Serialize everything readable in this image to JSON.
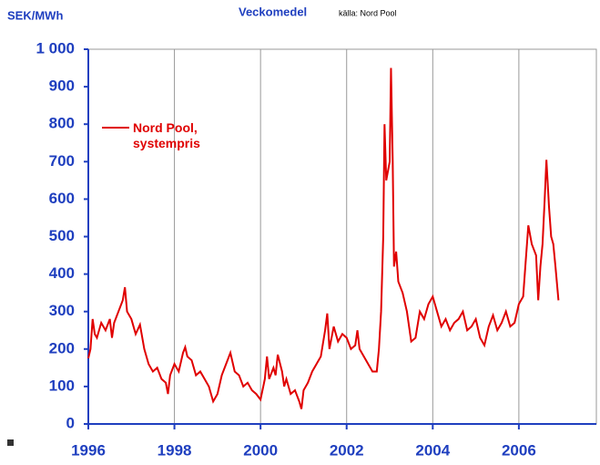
{
  "chart_data": {
    "type": "line",
    "title": "Veckomedel",
    "subtitle": "källa: Nord Pool",
    "y_label": "SEK/MWh",
    "xlim": [
      1996,
      2007.8
    ],
    "xticks": [
      1996,
      1998,
      2000,
      2002,
      2004,
      2006
    ],
    "ylim": [
      0,
      1000
    ],
    "yticks": [
      0,
      100,
      200,
      300,
      400,
      500,
      600,
      700,
      800,
      900,
      {
        "value": 1000,
        "label": "1 000"
      }
    ],
    "grid": true,
    "series": [
      {
        "name": "Nord Pool, systempris",
        "color": "#e00000",
        "x": [
          1996.0,
          1996.05,
          1996.1,
          1996.15,
          1996.2,
          1996.3,
          1996.4,
          1996.5,
          1996.55,
          1996.6,
          1996.7,
          1996.8,
          1996.85,
          1996.9,
          1997.0,
          1997.1,
          1997.2,
          1997.3,
          1997.4,
          1997.5,
          1997.6,
          1997.7,
          1997.8,
          1997.85,
          1997.9,
          1998.0,
          1998.1,
          1998.2,
          1998.25,
          1998.3,
          1998.4,
          1998.5,
          1998.6,
          1998.7,
          1998.8,
          1998.9,
          1999.0,
          1999.1,
          1999.2,
          1999.3,
          1999.4,
          1999.5,
          1999.6,
          1999.7,
          1999.8,
          1999.9,
          2000.0,
          2000.1,
          2000.15,
          2000.2,
          2000.3,
          2000.35,
          2000.4,
          2000.5,
          2000.55,
          2000.6,
          2000.7,
          2000.8,
          2000.9,
          2000.95,
          2001.0,
          2001.1,
          2001.2,
          2001.3,
          2001.4,
          2001.5,
          2001.55,
          2001.6,
          2001.7,
          2001.8,
          2001.9,
          2002.0,
          2002.1,
          2002.2,
          2002.25,
          2002.3,
          2002.4,
          2002.5,
          2002.6,
          2002.7,
          2002.75,
          2002.8,
          2002.85,
          2002.88,
          2002.92,
          2003.0,
          2003.03,
          2003.07,
          2003.1,
          2003.15,
          2003.2,
          2003.3,
          2003.4,
          2003.5,
          2003.6,
          2003.7,
          2003.8,
          2003.9,
          2004.0,
          2004.1,
          2004.2,
          2004.3,
          2004.4,
          2004.5,
          2004.6,
          2004.7,
          2004.8,
          2004.9,
          2005.0,
          2005.1,
          2005.2,
          2005.3,
          2005.4,
          2005.5,
          2005.6,
          2005.7,
          2005.8,
          2005.9,
          2006.0,
          2006.1,
          2006.15,
          2006.22,
          2006.3,
          2006.4,
          2006.45,
          2006.5,
          2006.55,
          2006.6,
          2006.64,
          2006.7,
          2006.75,
          2006.8,
          2006.85,
          2006.92
        ],
        "values": [
          175,
          200,
          280,
          240,
          230,
          270,
          250,
          280,
          230,
          270,
          300,
          330,
          365,
          300,
          280,
          240,
          265,
          200,
          160,
          140,
          150,
          120,
          110,
          80,
          130,
          160,
          140,
          190,
          205,
          180,
          170,
          130,
          140,
          120,
          100,
          60,
          80,
          130,
          160,
          190,
          140,
          130,
          100,
          110,
          90,
          80,
          65,
          120,
          180,
          120,
          150,
          130,
          185,
          140,
          100,
          120,
          80,
          90,
          60,
          40,
          90,
          110,
          140,
          160,
          180,
          250,
          295,
          200,
          260,
          220,
          240,
          230,
          200,
          210,
          250,
          200,
          180,
          160,
          140,
          140,
          200,
          300,
          500,
          800,
          650,
          700,
          950,
          700,
          420,
          460,
          380,
          350,
          300,
          220,
          230,
          300,
          280,
          320,
          340,
          300,
          260,
          280,
          250,
          270,
          280,
          300,
          250,
          260,
          280,
          230,
          210,
          260,
          290,
          250,
          270,
          300,
          260,
          270,
          320,
          340,
          420,
          530,
          480,
          450,
          330,
          420,
          480,
          600,
          705,
          580,
          500,
          480,
          420,
          330
        ]
      }
    ]
  }
}
